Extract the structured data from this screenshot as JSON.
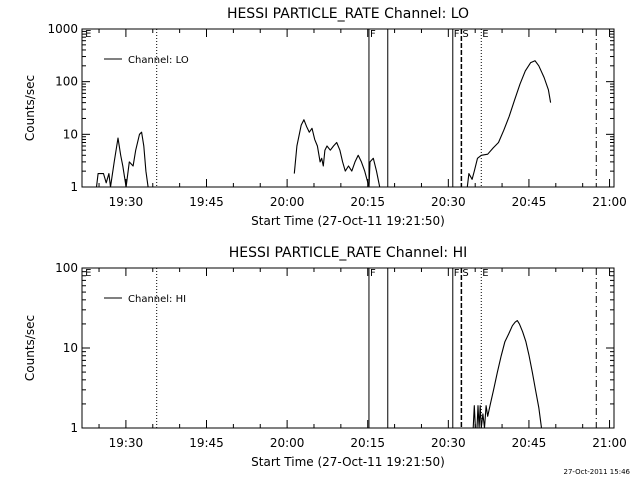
{
  "footer_timestamp": "27-Oct-2011 15:46",
  "chart_data": [
    {
      "type": "line",
      "title": "HESSI PARTICLE_RATE Channel: LO",
      "xlabel": "Start Time (27-Oct-11 19:21:50)",
      "ylabel": "Counts/sec",
      "x_unit": "minutes after 19:21:50",
      "xlim": [
        0,
        99
      ],
      "ylim": [
        1,
        1000
      ],
      "y_scale": "log",
      "x_ticks": [
        {
          "x": 8.17,
          "label": "19:30"
        },
        {
          "x": 23.17,
          "label": "19:45"
        },
        {
          "x": 38.17,
          "label": "20:00"
        },
        {
          "x": 53.17,
          "label": "20:15"
        },
        {
          "x": 68.17,
          "label": "20:30"
        },
        {
          "x": 83.17,
          "label": "20:45"
        },
        {
          "x": 98.17,
          "label": "21:00"
        }
      ],
      "y_ticks": [
        {
          "y": 1,
          "label": "1"
        },
        {
          "y": 10,
          "label": "10"
        },
        {
          "y": 100,
          "label": "100"
        },
        {
          "y": 1000,
          "label": "1000"
        }
      ],
      "legend": {
        "label": "Channel: LO",
        "position": "top-left"
      },
      "markers": [
        {
          "x": 0.4,
          "style": "none",
          "label": "E"
        },
        {
          "x": 13.9,
          "style": "dotted",
          "label": ""
        },
        {
          "x": 53.4,
          "style": "solid",
          "label": "F"
        },
        {
          "x": 56.9,
          "style": "solid",
          "label": ""
        },
        {
          "x": 69.0,
          "style": "solid",
          "label": "F"
        },
        {
          "x": 70.6,
          "style": "dashed",
          "label": "S"
        },
        {
          "x": 74.3,
          "style": "dotted",
          "label": "E"
        },
        {
          "x": 95.7,
          "style": "dashdot",
          "label": ""
        }
      ],
      "series": [
        {
          "segments": [
            [
              [
                2.7,
                1
              ],
              [
                3.0,
                1.8
              ],
              [
                4.0,
                1.8
              ],
              [
                4.5,
                1.2
              ],
              [
                5.0,
                1.8
              ],
              [
                5.3,
                1
              ],
              [
                6.0,
                3
              ],
              [
                6.7,
                8.5
              ],
              [
                7.2,
                4
              ],
              [
                7.6,
                2.5
              ],
              [
                8.2,
                1
              ],
              [
                8.8,
                3
              ],
              [
                9.5,
                2.5
              ],
              [
                10.0,
                5
              ],
              [
                10.7,
                10
              ],
              [
                11.1,
                11
              ],
              [
                11.5,
                6
              ],
              [
                11.9,
                2
              ],
              [
                12.3,
                1
              ]
            ],
            [
              [
                39.5,
                1.8
              ],
              [
                40.0,
                6
              ],
              [
                40.8,
                15
              ],
              [
                41.3,
                19
              ],
              [
                41.8,
                14
              ],
              [
                42.3,
                11
              ],
              [
                42.8,
                13
              ],
              [
                43.3,
                8
              ],
              [
                43.8,
                6
              ],
              [
                44.3,
                3
              ],
              [
                44.6,
                3.5
              ],
              [
                44.9,
                2.5
              ],
              [
                45.2,
                5
              ],
              [
                45.6,
                6
              ],
              [
                46.2,
                5
              ],
              [
                46.8,
                6
              ],
              [
                47.4,
                7
              ],
              [
                48.0,
                5
              ],
              [
                48.5,
                3
              ],
              [
                49.0,
                2
              ],
              [
                49.6,
                2.5
              ],
              [
                50.2,
                2
              ],
              [
                50.8,
                3
              ],
              [
                51.4,
                4
              ],
              [
                52.0,
                3
              ],
              [
                52.6,
                2
              ],
              [
                53.4,
                1
              ],
              [
                53.6,
                3
              ],
              [
                54.2,
                3.5
              ],
              [
                54.8,
                2
              ],
              [
                55.4,
                1
              ],
              [
                56.0,
                1
              ]
            ],
            [
              [
                71.7,
                1
              ],
              [
                72.0,
                1.8
              ],
              [
                72.6,
                1.4
              ],
              [
                73.0,
                2
              ],
              [
                73.6,
                3.5
              ],
              [
                74.3,
                4
              ],
              [
                75.5,
                4.2
              ],
              [
                76.5,
                5.5
              ],
              [
                77.5,
                7
              ],
              [
                78.5,
                12
              ],
              [
                79.5,
                22
              ],
              [
                80.5,
                45
              ],
              [
                81.5,
                90
              ],
              [
                82.5,
                160
              ],
              [
                83.5,
                230
              ],
              [
                84.3,
                250
              ],
              [
                85.0,
                200
              ],
              [
                86.0,
                120
              ],
              [
                86.8,
                70
              ],
              [
                87.2,
                40
              ]
            ]
          ]
        }
      ]
    },
    {
      "type": "line",
      "title": "HESSI PARTICLE_RATE Channel: HI",
      "xlabel": "Start Time (27-Oct-11 19:21:50)",
      "ylabel": "Counts/sec",
      "x_unit": "minutes after 19:21:50",
      "xlim": [
        0,
        99
      ],
      "ylim": [
        1,
        100
      ],
      "y_scale": "log",
      "x_ticks": [
        {
          "x": 8.17,
          "label": "19:30"
        },
        {
          "x": 23.17,
          "label": "19:45"
        },
        {
          "x": 38.17,
          "label": "20:00"
        },
        {
          "x": 53.17,
          "label": "20:15"
        },
        {
          "x": 68.17,
          "label": "20:30"
        },
        {
          "x": 83.17,
          "label": "20:45"
        },
        {
          "x": 98.17,
          "label": "21:00"
        }
      ],
      "y_ticks": [
        {
          "y": 1,
          "label": "1"
        },
        {
          "y": 10,
          "label": "10"
        },
        {
          "y": 100,
          "label": "100"
        }
      ],
      "legend": {
        "label": "Channel: HI",
        "position": "top-left"
      },
      "markers": [
        {
          "x": 0.4,
          "style": "none",
          "label": "E"
        },
        {
          "x": 13.9,
          "style": "dotted",
          "label": ""
        },
        {
          "x": 53.4,
          "style": "solid",
          "label": "F"
        },
        {
          "x": 56.9,
          "style": "solid",
          "label": ""
        },
        {
          "x": 69.0,
          "style": "solid",
          "label": "F"
        },
        {
          "x": 70.6,
          "style": "dashed",
          "label": "S"
        },
        {
          "x": 74.3,
          "style": "dotted",
          "label": "E"
        },
        {
          "x": 95.7,
          "style": "dashdot",
          "label": ""
        }
      ],
      "series": [
        {
          "segments": [
            [
              [
                72.8,
                1
              ],
              [
                73.0,
                1.9
              ],
              [
                73.2,
                1
              ],
              [
                73.5,
                1
              ],
              [
                73.7,
                1.9
              ],
              [
                73.9,
                1
              ],
              [
                74.1,
                1.9
              ],
              [
                74.3,
                1
              ],
              [
                74.6,
                1.5
              ],
              [
                74.9,
                1
              ],
              [
                75.2,
                1.9
              ],
              [
                75.5,
                1.4
              ],
              [
                76.0,
                2
              ],
              [
                76.6,
                3
              ],
              [
                77.3,
                5
              ],
              [
                78.0,
                8
              ],
              [
                78.7,
                12
              ],
              [
                79.4,
                15
              ],
              [
                80.1,
                19
              ],
              [
                80.6,
                21
              ],
              [
                81.0,
                22
              ],
              [
                81.4,
                20
              ],
              [
                82.0,
                16
              ],
              [
                82.6,
                12
              ],
              [
                83.2,
                8
              ],
              [
                83.8,
                5
              ],
              [
                84.4,
                3
              ],
              [
                85.0,
                1.8
              ],
              [
                85.5,
                1
              ]
            ]
          ]
        }
      ]
    }
  ]
}
